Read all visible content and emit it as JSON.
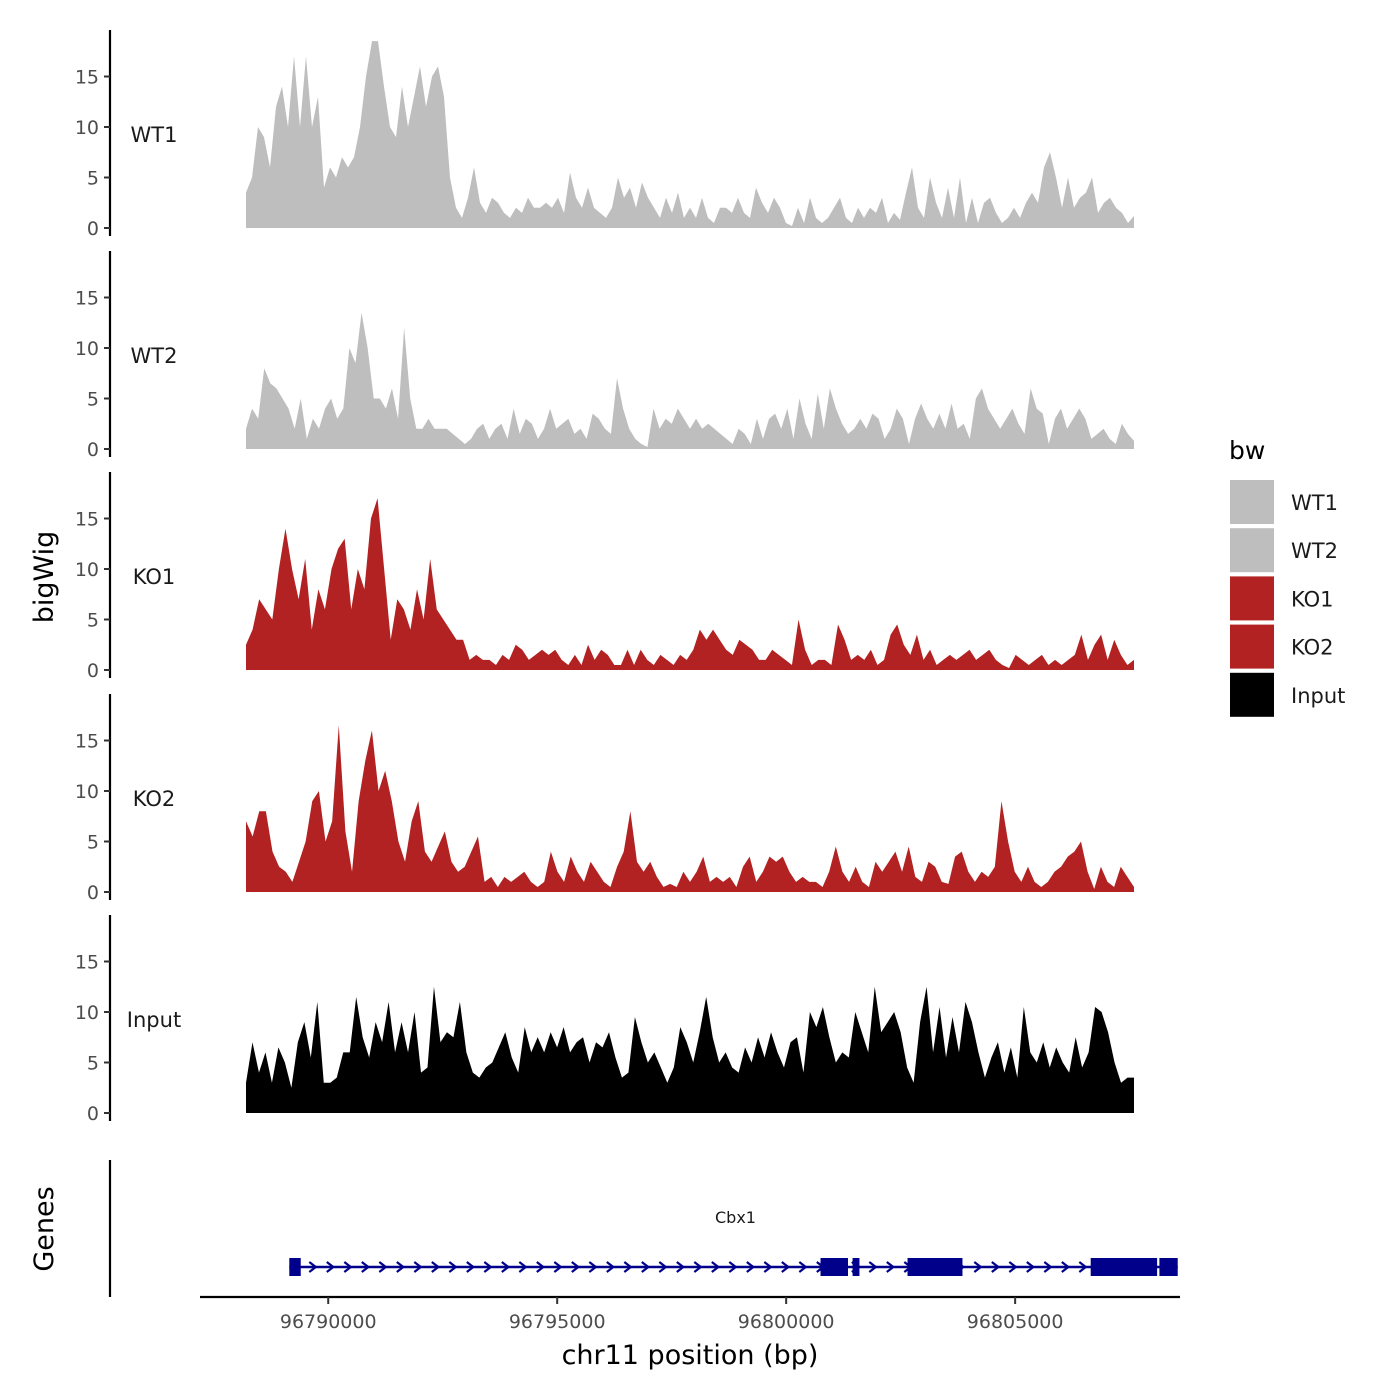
{
  "chart_data": {
    "type": "area",
    "chromosome": "chr11",
    "xlabel": "chr11 position (bp)",
    "ylabel": "bigWig",
    "genes_label": "Genes",
    "xlim": [
      96787200,
      96808600
    ],
    "x_ticks": [
      96790000,
      96795000,
      96800000,
      96805000
    ],
    "x_tick_labels": [
      "96790000",
      "96795000",
      "96800000",
      "96805000"
    ],
    "ylim": [
      0,
      19
    ],
    "y_ticks": [
      0,
      5,
      10,
      15
    ],
    "y_tick_labels": [
      "0",
      "5",
      "10",
      "15"
    ],
    "legend": {
      "title": "bw",
      "placement": "right",
      "entries": [
        {
          "label": "WT1",
          "color": "#bebebe"
        },
        {
          "label": "WT2",
          "color": "#bebebe"
        },
        {
          "label": "KO1",
          "color": "#b22222"
        },
        {
          "label": "KO2",
          "color": "#b22222"
        },
        {
          "label": "Input",
          "color": "#000000"
        }
      ]
    },
    "series": [
      {
        "name": "WT1",
        "color": "#bebebe",
        "values": [
          3.5,
          5,
          10,
          9,
          6,
          12,
          14,
          10,
          17,
          10,
          17,
          10,
          13,
          4,
          6,
          5,
          7,
          6,
          7,
          10,
          15,
          18.5,
          18.5,
          14,
          10,
          9,
          14,
          10,
          13,
          16,
          12,
          15,
          16,
          13,
          5,
          2,
          1,
          3,
          6,
          2.5,
          1.5,
          3,
          2.5,
          1.5,
          1,
          2,
          1.5,
          3,
          2,
          2,
          2.5,
          2,
          3,
          1.5,
          5.5,
          3,
          2,
          4,
          2,
          1.5,
          1,
          2,
          5,
          3,
          4,
          2,
          4.5,
          3,
          2,
          1,
          3,
          1.5,
          3.5,
          1,
          2,
          1,
          3,
          1,
          0.5,
          2,
          2,
          1.5,
          3,
          1.5,
          1,
          4,
          2.5,
          1.5,
          3,
          2,
          0.5,
          0.2,
          2,
          0.5,
          3,
          1,
          0.5,
          1,
          2,
          3,
          1,
          0.5,
          2,
          1,
          2,
          1.5,
          3,
          0.5,
          1.5,
          0.8,
          3.5,
          6,
          2,
          1,
          5,
          2.5,
          1,
          4,
          1,
          5,
          0.5,
          3,
          0.5,
          2.5,
          3,
          1.5,
          0.5,
          1,
          2,
          1,
          2.5,
          3.5,
          2.5,
          6,
          7.5,
          5,
          2,
          5,
          2,
          3,
          3.5,
          5,
          1.5,
          2.5,
          3,
          2,
          1.5,
          0.5,
          1.2
        ]
      },
      {
        "name": "WT2",
        "color": "#bebebe",
        "values": [
          2,
          4,
          3,
          8,
          6.5,
          6,
          5,
          4,
          2,
          5,
          1,
          3,
          2,
          4,
          5,
          3,
          4,
          10,
          8.5,
          13.5,
          10,
          5,
          5,
          4,
          6,
          3,
          12,
          5,
          2,
          2,
          3,
          2,
          2,
          2,
          1.5,
          1,
          0.5,
          1,
          2,
          2.5,
          1,
          2,
          2.5,
          1,
          4,
          1.5,
          3,
          2.5,
          1,
          2,
          4,
          2,
          2.5,
          3,
          1.5,
          2,
          1,
          3.5,
          3,
          2,
          1.5,
          7,
          4,
          2,
          1,
          0.5,
          0.2,
          4,
          2,
          3,
          2.5,
          4,
          3,
          2,
          3,
          2,
          2.5,
          2,
          1.5,
          1,
          0.5,
          2,
          1.5,
          0.5,
          3,
          1,
          3,
          3.5,
          2,
          4,
          1,
          5,
          2.5,
          1,
          5.5,
          2,
          6,
          4,
          2.5,
          1.5,
          2,
          3,
          2,
          3.5,
          3,
          1,
          2,
          4,
          3,
          0.5,
          3,
          4.5,
          3,
          2,
          3.5,
          2,
          4.5,
          2,
          2.5,
          1,
          5,
          6,
          4,
          3,
          2,
          3,
          4,
          2.5,
          1.5,
          6,
          4,
          3.5,
          0.5,
          3,
          4,
          2,
          3,
          4,
          3,
          1,
          1.5,
          2,
          1,
          0.5,
          2.5,
          1.5,
          0.8
        ]
      },
      {
        "name": "KO1",
        "color": "#b22222",
        "values": [
          2.5,
          4,
          7,
          6,
          5,
          10,
          14,
          10,
          7,
          11,
          4,
          8,
          6,
          10,
          12,
          13,
          6,
          10,
          8,
          15,
          17,
          10,
          3,
          7,
          6,
          4,
          8,
          5,
          11,
          6,
          5,
          4,
          3,
          3,
          1,
          1.5,
          1,
          1,
          0.5,
          1.5,
          1,
          2.5,
          2,
          1,
          1.5,
          2,
          1.5,
          2,
          1,
          0.5,
          1.5,
          0.5,
          2.5,
          1,
          2,
          1.5,
          0.5,
          0.5,
          2,
          0.5,
          2,
          1,
          0.5,
          1.5,
          1,
          0.5,
          1.5,
          1,
          2,
          4,
          3,
          4,
          3,
          2,
          1.5,
          3,
          2.5,
          2,
          1,
          1,
          2,
          1.5,
          1,
          0.5,
          5,
          2,
          0.5,
          1,
          1,
          0.5,
          4.5,
          3,
          1,
          1.5,
          1,
          2,
          0.5,
          1,
          3.5,
          4.5,
          2.5,
          1.5,
          3.5,
          1,
          2,
          0.5,
          1,
          1.5,
          1,
          1.5,
          2,
          1,
          1.5,
          2,
          1,
          0.5,
          0.2,
          1.5,
          1,
          0.5,
          1,
          1.5,
          0.5,
          1,
          0.5,
          1,
          1.5,
          3.5,
          1,
          2.5,
          3.5,
          1,
          3,
          1.5,
          0.5,
          1
        ]
      },
      {
        "name": "KO2",
        "color": "#b22222",
        "values": [
          7,
          5.5,
          8,
          8,
          4,
          2.5,
          2,
          1,
          3,
          5,
          9,
          10,
          5,
          7,
          16.5,
          6,
          2,
          9,
          13,
          16,
          10,
          12,
          9,
          5,
          3,
          7,
          9,
          4,
          3,
          4.5,
          6,
          3,
          2,
          2.5,
          4,
          5.5,
          1,
          1.5,
          0.5,
          1.5,
          1,
          1.5,
          2,
          1,
          0.5,
          1,
          4,
          2,
          1,
          3.5,
          2,
          1,
          3,
          2,
          1,
          0.5,
          2.5,
          4,
          8,
          3,
          2,
          3,
          1.5,
          0.5,
          0.8,
          0.5,
          2,
          1,
          2,
          3.5,
          1,
          1.5,
          1,
          1.5,
          0.5,
          2.5,
          3.5,
          1,
          2,
          3.5,
          3,
          3.5,
          2,
          1,
          1.5,
          1,
          1,
          0.5,
          2,
          4.5,
          2,
          1,
          2.5,
          1,
          0.5,
          3,
          2,
          3,
          4,
          2,
          4.5,
          1.5,
          1,
          3,
          2.5,
          1,
          0.8,
          3.5,
          4,
          2,
          1,
          2,
          1.5,
          2.5,
          9,
          5,
          2,
          1,
          2.5,
          1,
          0.5,
          1,
          2,
          2.5,
          3.5,
          4,
          5,
          2,
          0.3,
          2.5,
          1,
          0.5,
          2.5,
          1.5,
          0.5
        ]
      },
      {
        "name": "Input",
        "color": "#000000",
        "values": [
          3,
          7,
          4,
          6,
          3,
          6.5,
          5,
          2.5,
          7,
          9,
          5.5,
          11,
          3,
          3,
          3.5,
          6,
          6,
          11.5,
          7.5,
          5.5,
          9,
          7,
          11,
          6,
          9,
          6,
          10,
          4,
          4.5,
          12.5,
          7,
          8,
          7.5,
          11,
          6,
          4,
          3.5,
          4.5,
          5,
          6.5,
          8,
          5.5,
          4,
          8.5,
          6,
          7.5,
          6,
          8,
          6.5,
          8.5,
          6,
          7,
          7.5,
          5,
          7,
          6.5,
          8,
          5.5,
          3.5,
          4,
          9.5,
          7,
          5,
          6,
          4.5,
          3,
          4.5,
          8.5,
          7,
          5,
          8,
          11.5,
          7.5,
          5,
          6,
          4.5,
          4,
          6.5,
          5,
          7.5,
          5.5,
          8,
          6,
          4.5,
          7,
          7.5,
          4,
          10,
          8.5,
          10.5,
          7.5,
          5,
          6,
          5.5,
          10,
          8,
          6,
          12.5,
          8,
          9,
          10,
          8,
          4.5,
          3,
          9,
          12.5,
          6,
          10.5,
          5.5,
          9.5,
          6,
          11,
          9,
          6,
          3.5,
          5.5,
          7,
          4,
          6.5,
          3.5,
          10.5,
          6,
          5,
          7,
          4.5,
          6.5,
          5,
          4,
          7.5,
          4.5,
          6,
          10.5,
          10,
          8,
          5,
          3,
          3.5,
          3.5
        ]
      }
    ],
    "genes": [
      {
        "name": "Cbx1",
        "strand": "+",
        "start": 96789150,
        "end": 96808550,
        "exons": [
          [
            96789150,
            96789400
          ],
          [
            96800750,
            96801350
          ],
          [
            96801450,
            96801600
          ],
          [
            96802650,
            96803850
          ],
          [
            96806650,
            96808100
          ],
          [
            96808150,
            96808550
          ]
        ]
      }
    ]
  }
}
